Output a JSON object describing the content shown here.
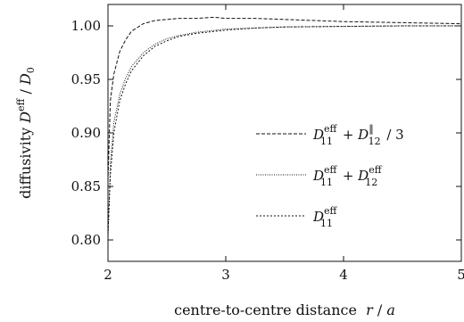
{
  "chart_data": {
    "type": "line",
    "xlabel_text": "centre-to-centre distance",
    "xlabel_var": "r",
    "xlabel_sep": " / ",
    "xlabel_unit": "a",
    "ylabel_text": "diffusivity",
    "ylabel_var": "D",
    "ylabel_var_sup": "eff",
    "ylabel_sep": " / ",
    "ylabel_unit": "D",
    "ylabel_unit_sub": "0",
    "xlim": [
      2,
      5
    ],
    "ylim": [
      0.78,
      1.02
    ],
    "xticks": [
      "2",
      "3",
      "4",
      "5"
    ],
    "yticks": [
      "0.80",
      "0.85",
      "0.90",
      "0.95",
      "1.00"
    ],
    "grid": false,
    "legend_position": "center-right",
    "series": [
      {
        "name": "D11eff + D12∥ / 3",
        "legend": {
          "a": "D",
          "a_sup": "eff",
          "a_sub": "11",
          "op": "+",
          "b": "D",
          "b_sup": "‖",
          "b_sub": "12",
          "tail": " / 3"
        },
        "dash": "dashed",
        "color": "#111111",
        "x": [
          2.0,
          2.02,
          2.05,
          2.1,
          2.15,
          2.2,
          2.3,
          2.4,
          2.5,
          2.6,
          2.75,
          2.9,
          3.0,
          3.25,
          3.5,
          3.75,
          4.0,
          4.5,
          5.0
        ],
        "y": [
          0.855,
          0.93,
          0.955,
          0.976,
          0.987,
          0.995,
          1.002,
          1.005,
          1.006,
          1.007,
          1.007,
          1.008,
          1.007,
          1.007,
          1.006,
          1.005,
          1.004,
          1.003,
          1.002
        ]
      },
      {
        "name": "D11eff + D12eff",
        "legend": {
          "a": "D",
          "a_sup": "eff",
          "a_sub": "11",
          "op": "+",
          "b": "D",
          "b_sup": "eff",
          "b_sub": "12",
          "tail": ""
        },
        "dash": "dotted",
        "color": "#111111",
        "x": [
          2.0,
          2.02,
          2.05,
          2.1,
          2.15,
          2.2,
          2.3,
          2.4,
          2.5,
          2.6,
          2.75,
          3.0,
          3.25,
          3.5,
          4.0,
          4.5,
          5.0
        ],
        "y": [
          0.8,
          0.87,
          0.91,
          0.936,
          0.951,
          0.962,
          0.975,
          0.983,
          0.988,
          0.991,
          0.994,
          0.997,
          0.998,
          0.999,
          0.9995,
          1.0,
          1.0
        ]
      },
      {
        "name": "D11eff",
        "legend": {
          "a": "D",
          "a_sup": "eff",
          "a_sub": "11",
          "op": "",
          "b": "",
          "b_sup": "",
          "b_sub": "",
          "tail": ""
        },
        "dash": "fine-dashed",
        "color": "#111111",
        "x": [
          2.0,
          2.02,
          2.05,
          2.1,
          2.15,
          2.2,
          2.3,
          2.4,
          2.5,
          2.6,
          2.75,
          3.0,
          3.25,
          3.5,
          4.0,
          4.5,
          5.0
        ],
        "y": [
          0.805,
          0.86,
          0.9,
          0.93,
          0.946,
          0.958,
          0.972,
          0.981,
          0.986,
          0.99,
          0.993,
          0.996,
          0.998,
          0.999,
          0.9995,
          1.0,
          1.0
        ]
      }
    ]
  }
}
